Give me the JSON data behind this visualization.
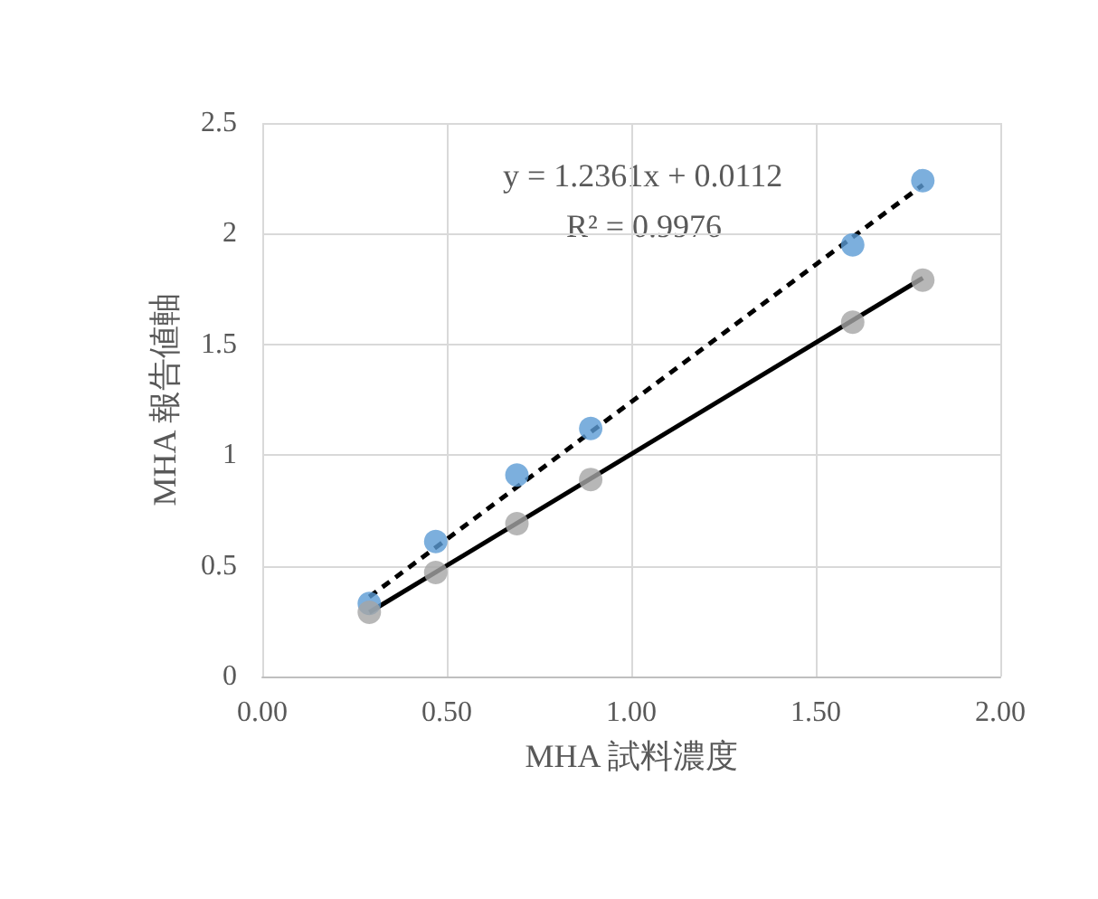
{
  "chart_data": {
    "type": "scatter",
    "xlabel": "MHA 試料濃度",
    "ylabel": "MHA 報告値軸",
    "annotations": [
      "y = 1.2361x + 0.0112",
      "R² = 0.9976"
    ],
    "xlim": [
      0,
      2
    ],
    "xticks": [
      {
        "value": 0,
        "label": "0.00"
      },
      {
        "value": 0.5,
        "label": "0.50"
      },
      {
        "value": 1,
        "label": "1.00"
      },
      {
        "value": 1.5,
        "label": "1.50"
      },
      {
        "value": 2,
        "label": "2.00"
      }
    ],
    "ylim": [
      0,
      2.5
    ],
    "yticks": [
      0,
      0.5,
      1,
      1.5,
      2,
      2.5
    ],
    "grid": true,
    "marker": "circle",
    "series": [
      {
        "color": "#5b9bd5",
        "x": [
          0.29,
          0.47,
          0.69,
          0.89,
          1.6,
          1.79
        ],
        "values": [
          0.33,
          0.61,
          0.91,
          1.12,
          1.95,
          2.24
        ]
      },
      {
        "color": "#a5a5a5",
        "x": [
          0.29,
          0.47,
          0.69,
          0.89,
          1.6,
          1.79
        ],
        "values": [
          0.29,
          0.47,
          0.69,
          0.89,
          1.6,
          1.79
        ]
      },
      {
        "type": "line",
        "color": "#000000",
        "line_style": "dashed",
        "marker": "none",
        "x": [
          0.29,
          1.79
        ],
        "values": [
          0.36,
          2.22
        ]
      },
      {
        "type": "line",
        "color": "#000000",
        "line_style": "solid",
        "marker": "none",
        "x": [
          0.29,
          1.79
        ],
        "values": [
          0.29,
          1.8
        ]
      }
    ]
  }
}
